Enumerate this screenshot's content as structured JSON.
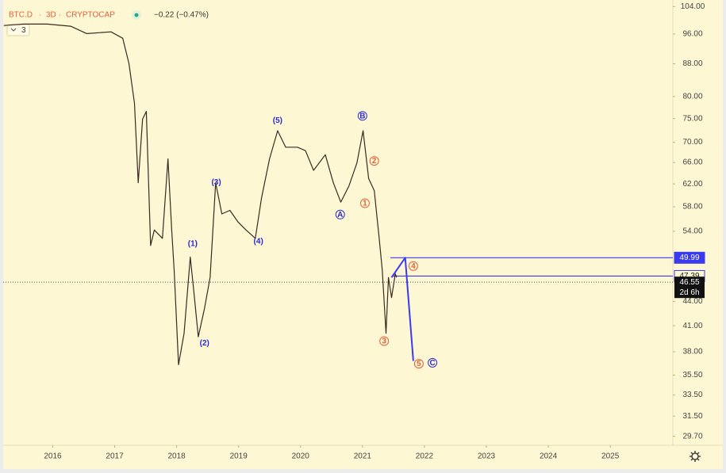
{
  "chart_data": {
    "type": "line",
    "symbol": "BTC.D",
    "interval": "3D",
    "exchange": "CRYPTOCAP",
    "change": "−0.22 (−0.47%)",
    "legend_count": "3",
    "log_scale": true,
    "xlim": [
      2015.2,
      2026.01
    ],
    "xticks": [
      2016,
      2017,
      2018,
      2019,
      2020,
      2021,
      2022,
      2023,
      2024,
      2025
    ],
    "ylim": [
      29,
      106
    ],
    "yticks": [
      {
        "value": 104,
        "label": "104.00"
      },
      {
        "value": 96,
        "label": "96.00"
      },
      {
        "value": 88,
        "label": "88.00"
      },
      {
        "value": 80,
        "label": "80.00"
      },
      {
        "value": 75,
        "label": "75.00"
      },
      {
        "value": 70,
        "label": "70.00"
      },
      {
        "value": 66,
        "label": "66.00"
      },
      {
        "value": 62,
        "label": "62.00"
      },
      {
        "value": 58,
        "label": "58.00"
      },
      {
        "value": 54,
        "label": "54.00"
      },
      {
        "value": 44,
        "label": "44.00"
      },
      {
        "value": 41,
        "label": "41.00"
      },
      {
        "value": 38,
        "label": "38.00"
      },
      {
        "value": 35.5,
        "label": "35.50"
      },
      {
        "value": 33.5,
        "label": "33.50"
      },
      {
        "value": 31.5,
        "label": "31.50"
      },
      {
        "value": 29.7,
        "label": "29.70"
      }
    ],
    "series": [
      {
        "color": "#3b2a24",
        "width": 1.2,
        "x": [
          2015.21,
          2015.53,
          2015.91,
          2016.29,
          2016.55,
          2016.94,
          2017.13,
          2017.23,
          2017.32,
          2017.38,
          2017.45,
          2017.51,
          2017.58,
          2017.64,
          2017.77,
          2017.86,
          2017.92,
          2017.96,
          2018.03,
          2018.12,
          2018.22,
          2018.28,
          2018.35,
          2018.45,
          2018.54,
          2018.63,
          2018.73,
          2018.86,
          2018.99,
          2019.12,
          2019.27,
          2019.37,
          2019.5,
          2019.63,
          2019.76,
          2019.95,
          2020.08,
          2020.21,
          2020.4,
          2020.53,
          2020.65,
          2020.78,
          2020.91,
          2021.01,
          2021.1,
          2021.19,
          2021.27,
          2021.32,
          2021.38,
          2021.42,
          2021.47,
          2021.53,
          2021.55
        ],
        "values": [
          98.4,
          98.8,
          98.8,
          98.2,
          96.1,
          96.6,
          94.8,
          88.1,
          78.4,
          62.2,
          74.9,
          76.6,
          51.8,
          54.2,
          52.9,
          66.7,
          54.2,
          48.2,
          36.6,
          40.1,
          50.1,
          45.1,
          39.7,
          43.1,
          47.2,
          62.2,
          56.8,
          57.4,
          55.5,
          54.2,
          52.9,
          59.5,
          66.7,
          72.4,
          69.0,
          69.0,
          68.3,
          64.5,
          67.5,
          62.2,
          58.8,
          61.6,
          65.9,
          72.4,
          63.0,
          60.8,
          52.9,
          48.2,
          40.1,
          47.2,
          44.5,
          47.7,
          47.2
        ]
      },
      {
        "color": "#3a3af0",
        "width": 2,
        "x": [
          2021.47,
          2021.69,
          2021.82
        ],
        "values": [
          47.2,
          49.99,
          37.0
        ]
      }
    ],
    "hlines": [
      {
        "value": 49.99,
        "from": 2021.45,
        "color": "#3a3af0",
        "filled": true
      },
      {
        "value": 47.39,
        "from": 2021.47,
        "color": "#3a3af0",
        "filled": false
      }
    ],
    "last_price": 46.55,
    "countdown": "2d 6h",
    "annotations": [
      {
        "text": "(1)",
        "x": 2018.26,
        "y": 52.1,
        "color": "#2a2ad0",
        "circled": false
      },
      {
        "text": "(2)",
        "x": 2018.45,
        "y": 39.0,
        "color": "#2a2ad0",
        "circled": false
      },
      {
        "text": "(3)",
        "x": 2018.64,
        "y": 62.3,
        "color": "#2a2ad0",
        "circled": false
      },
      {
        "text": "(4)",
        "x": 2019.32,
        "y": 52.5,
        "color": "#2a2ad0",
        "circled": false
      },
      {
        "text": "(5)",
        "x": 2019.63,
        "y": 74.6,
        "color": "#2a2ad0",
        "circled": false
      },
      {
        "text": "A",
        "x": 2020.64,
        "y": 56.7,
        "color": "#2a2ad0",
        "circled": true
      },
      {
        "text": "B",
        "x": 2021.0,
        "y": 75.6,
        "color": "#2a2ad0",
        "circled": true
      },
      {
        "text": "C",
        "x": 2022.13,
        "y": 36.8,
        "color": "#2a2ad0",
        "circled": true
      },
      {
        "text": "1",
        "x": 2021.04,
        "y": 58.6,
        "color": "#e0603a",
        "circled": true
      },
      {
        "text": "2",
        "x": 2021.19,
        "y": 66.3,
        "color": "#e0603a",
        "circled": true
      },
      {
        "text": "3",
        "x": 2021.35,
        "y": 39.2,
        "color": "#e0603a",
        "circled": true
      },
      {
        "text": "4",
        "x": 2021.82,
        "y": 48.8,
        "color": "#e0603a",
        "circled": true
      },
      {
        "text": "5",
        "x": 2021.91,
        "y": 36.7,
        "color": "#e0603a",
        "circled": true
      }
    ]
  }
}
